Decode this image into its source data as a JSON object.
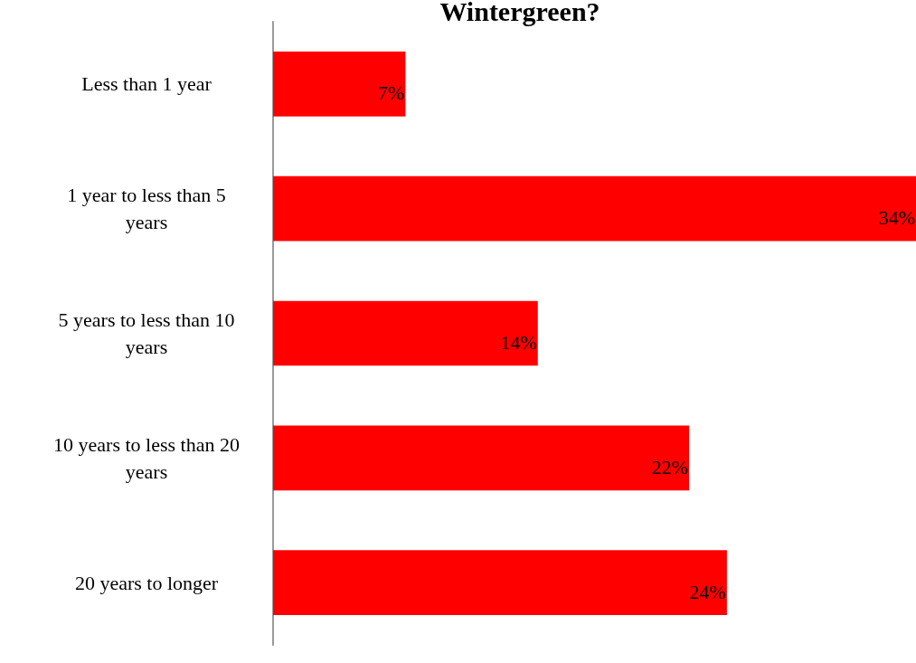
{
  "chart_data": {
    "type": "bar",
    "orientation": "horizontal",
    "title": "Wintergreen?",
    "categories": [
      "Less than 1 year",
      "1 year to less than 5 years",
      "5 years to less than 10 years",
      "10 years to less than 20 years",
      "20 years to longer"
    ],
    "values": [
      7,
      34,
      14,
      22,
      24
    ],
    "value_labels": [
      "7%",
      "34%",
      "14%",
      "22%",
      "24%"
    ],
    "color": "#ff0000",
    "xlim": [
      0,
      34
    ]
  }
}
